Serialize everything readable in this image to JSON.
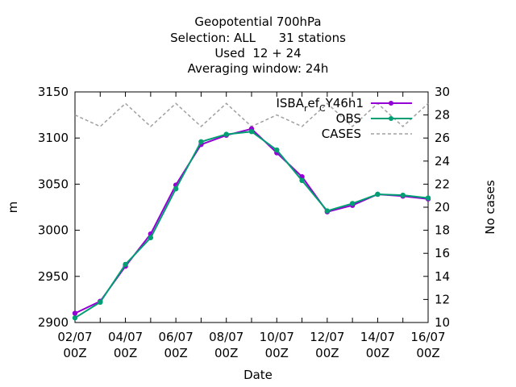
{
  "chart_data": {
    "type": "line",
    "title_lines": [
      "Geopotential 700hPa",
      "Selection: ALL      31 stations",
      "Used  12 + 24",
      "Averaging window: 24h"
    ],
    "xlabel": "Date",
    "ylabel": "m",
    "y2label": "No cases",
    "ylim": [
      2900,
      3150
    ],
    "y2lim": [
      10,
      30
    ],
    "yticks": [
      2900,
      2950,
      3000,
      3050,
      3100,
      3150
    ],
    "y2ticks": [
      10,
      12,
      14,
      16,
      18,
      20,
      22,
      24,
      26,
      28,
      30
    ],
    "x_count": 15,
    "xtick_labels": [
      {
        "index": 0,
        "line1": "02/07",
        "line2": "00Z"
      },
      {
        "index": 2,
        "line1": "04/07",
        "line2": "00Z"
      },
      {
        "index": 4,
        "line1": "06/07",
        "line2": "00Z"
      },
      {
        "index": 6,
        "line1": "08/07",
        "line2": "00Z"
      },
      {
        "index": 8,
        "line1": "10/07",
        "line2": "00Z"
      },
      {
        "index": 10,
        "line1": "12/07",
        "line2": "00Z"
      },
      {
        "index": 12,
        "line1": "14/07",
        "line2": "00Z"
      },
      {
        "index": 14,
        "line1": "16/07",
        "line2": "00Z"
      }
    ],
    "series": [
      {
        "name": "ISBA_ref_CY46h1",
        "legend_main": "ISBA",
        "legend_sub1": "r",
        "legend_mid": "ef",
        "legend_sub2": "C",
        "legend_end": "Y46h1",
        "color": "#9400d3",
        "axis": "y1",
        "values": [
          2910,
          2923,
          2961,
          2996,
          3049,
          3093,
          3103,
          3110,
          3084,
          3058,
          3020,
          3027,
          3039,
          3037,
          3034
        ]
      },
      {
        "name": "OBS",
        "color": "#009e73",
        "axis": "y1",
        "values": [
          2905,
          2922,
          2963,
          2992,
          3045,
          3096,
          3104,
          3107,
          3087,
          3054,
          3021,
          3029,
          3039,
          3038,
          3035
        ]
      },
      {
        "name": "CASES",
        "color": "#a0a0a0",
        "axis": "y2",
        "dashed": true,
        "values": [
          28,
          27,
          29,
          27,
          29,
          27,
          29,
          27,
          28,
          27,
          29,
          27,
          29,
          27,
          29
        ]
      }
    ]
  }
}
